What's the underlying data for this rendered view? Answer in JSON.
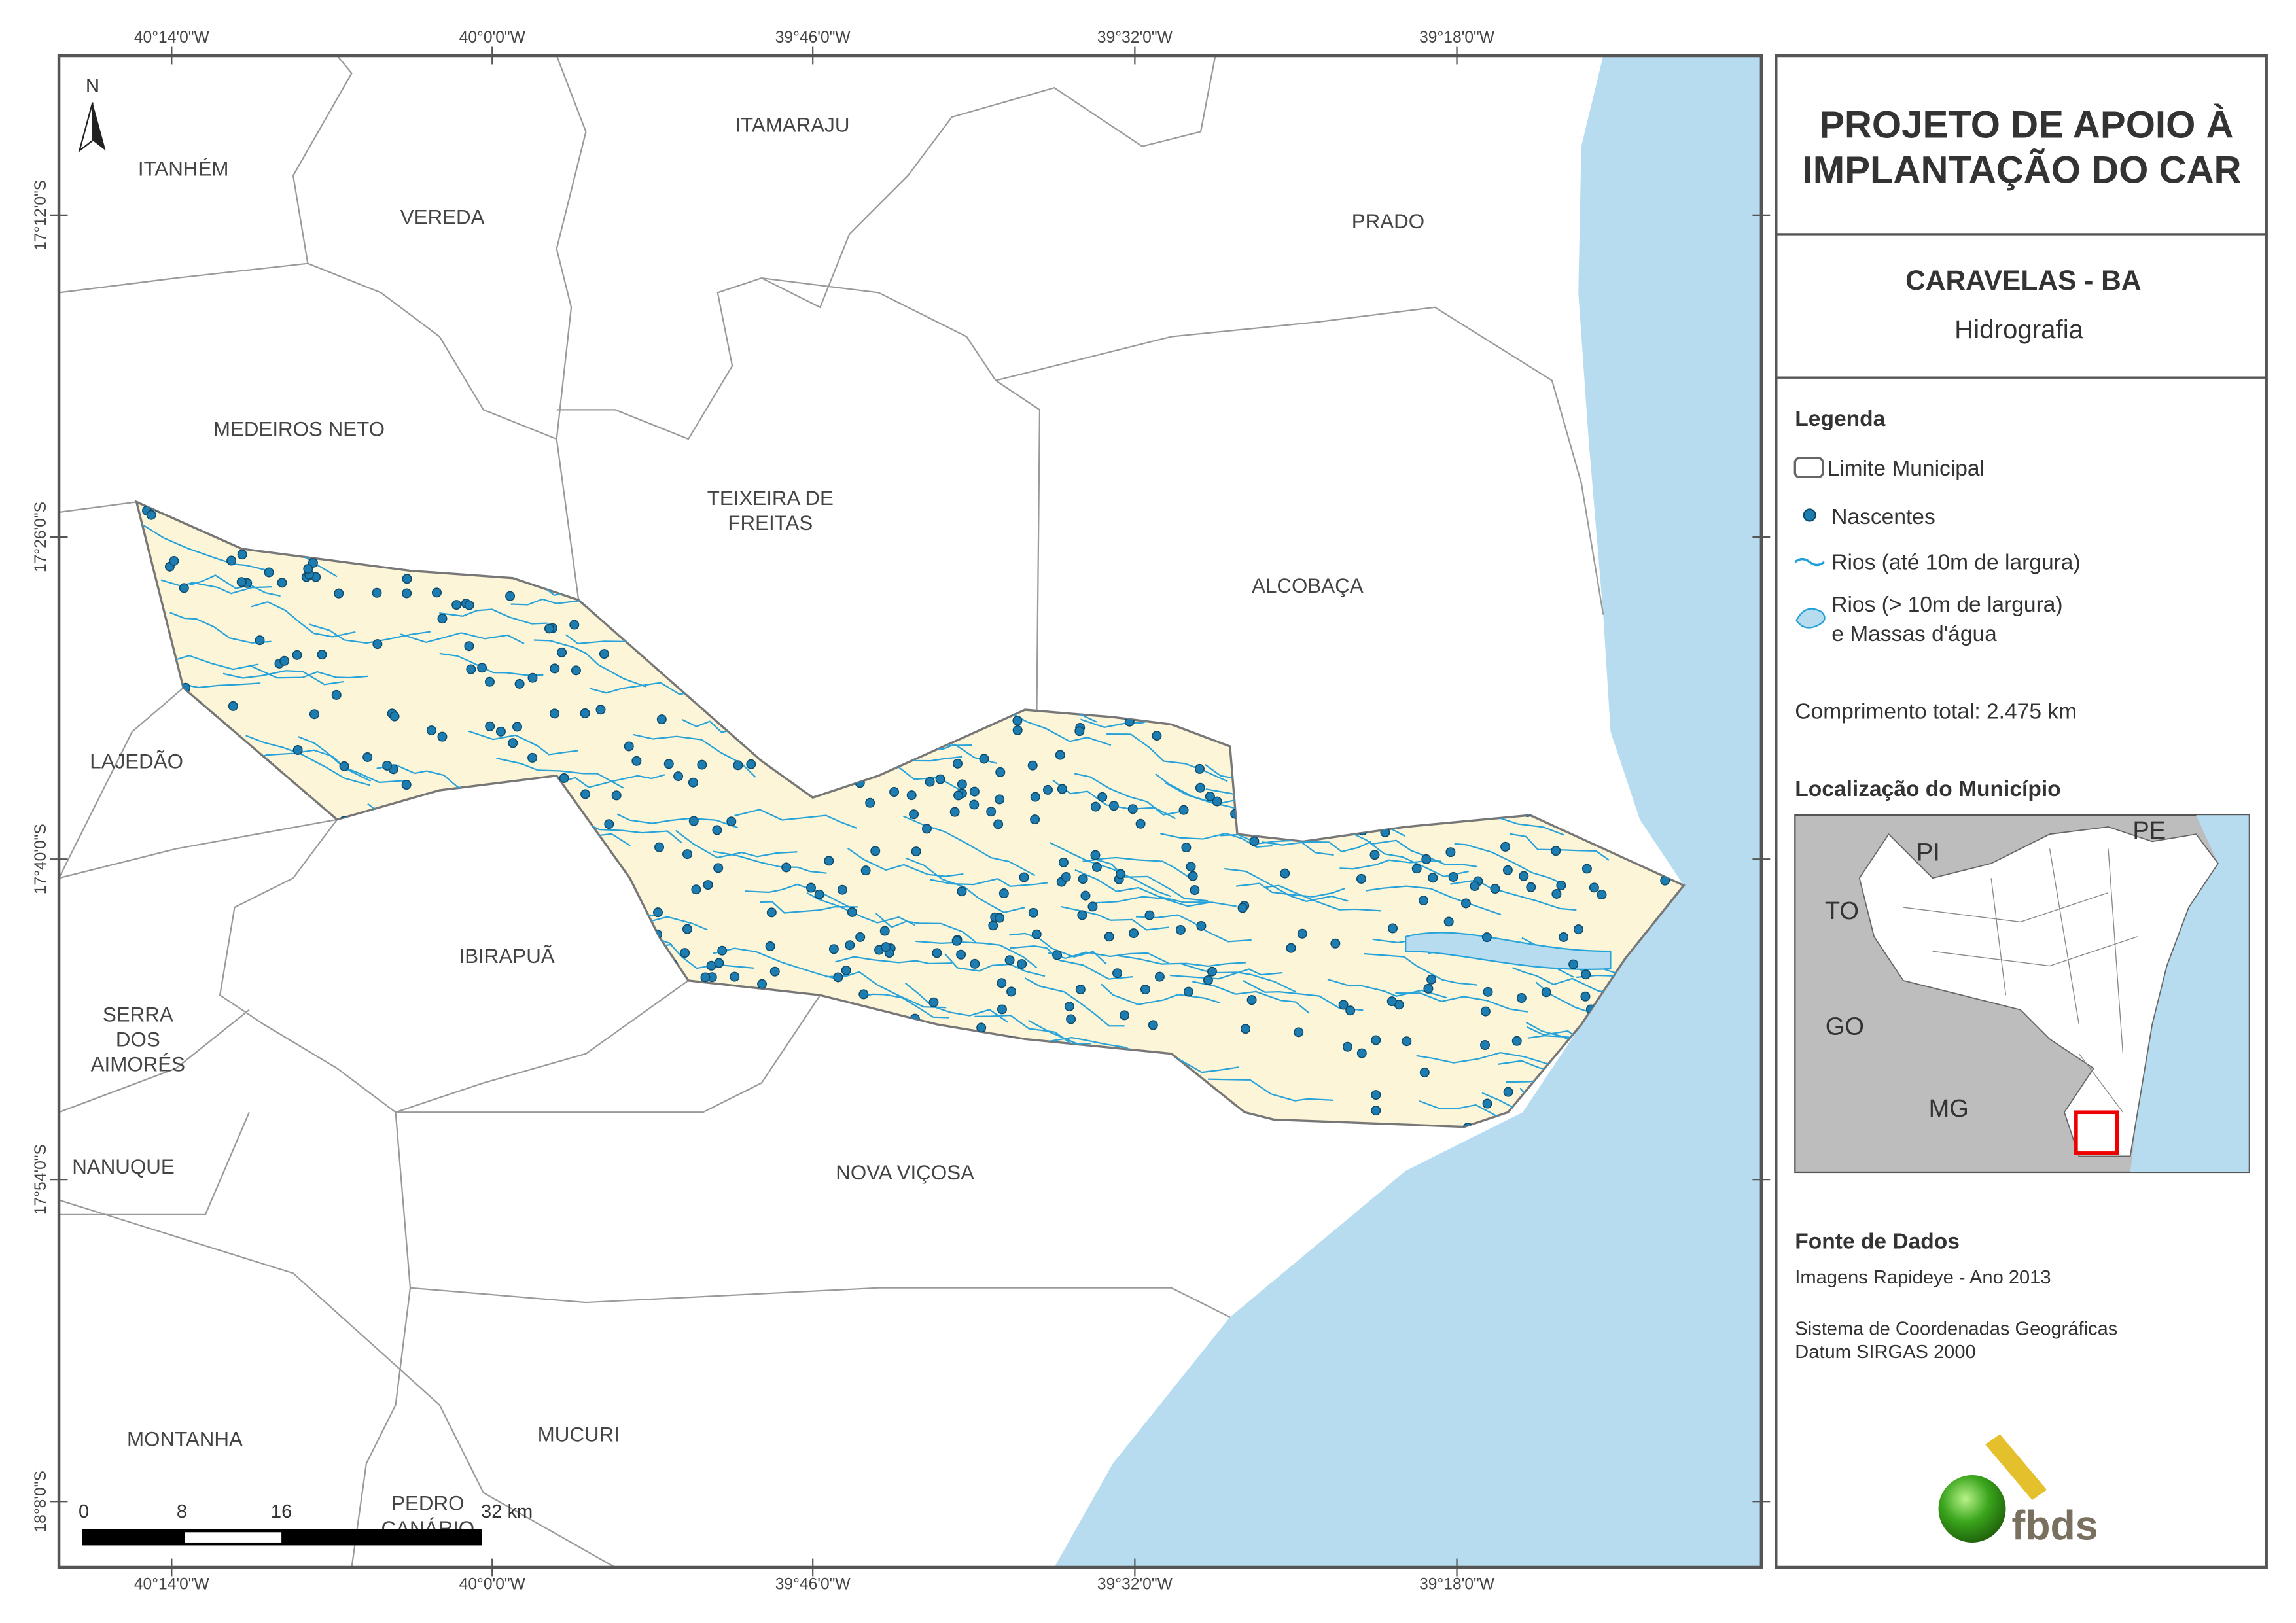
{
  "map": {
    "top_coords": [
      "40°14'0\"W",
      "40°0'0\"W",
      "39°46'0\"W",
      "39°32'0\"W",
      "39°18'0\"W"
    ],
    "left_coords": [
      "17°12'0\"S",
      "17°26'0\"S",
      "17°40'0\"S",
      "17°54'0\"S",
      "18°8'0\"S"
    ],
    "north": "N",
    "places": [
      [
        "ITAMARAJU"
      ],
      [
        "ITANHÉM"
      ],
      [
        "VEREDA"
      ],
      [
        "PRADO"
      ],
      [
        "MEDEIROS NETO"
      ],
      [
        "TEIXEIRA DE",
        "FREITAS"
      ],
      [
        "ALCOBAÇA"
      ],
      [
        "LAJEDÃO"
      ],
      [
        "IBIRAPUÃ"
      ],
      [
        "SERRA",
        "DOS",
        "AIMORÉS"
      ],
      [
        "NANUQUE"
      ],
      [
        "NOVA VIÇOSA"
      ],
      [
        "MONTANHA"
      ],
      [
        "MUCURI"
      ],
      [
        "PEDRO",
        "CANÁRIO"
      ]
    ],
    "scale_bar": [
      "0",
      "8",
      "16",
      "32 km"
    ]
  },
  "panel": {
    "title": [
      "PROJETO DE APOIO À",
      "IMPLANTAÇÃO DO CAR"
    ],
    "municipality": "CARAVELAS - BA",
    "theme": "Hidrografia",
    "legend": {
      "title": "Legenda",
      "items": [
        "Limite Municipal",
        "Nascentes",
        "Rios (até 10m de largura)",
        [
          "Rios (> 10m de largura)",
          "e Massas d'água"
        ]
      ]
    },
    "total_length": "Comprimento total:  2.475 km",
    "location_title": "Localização do Município",
    "inset_labels": [
      "PI",
      "PE",
      "TO",
      "GO",
      "MG"
    ],
    "sources_title": "Fonte de Dados",
    "sources": [
      "Imagens Rapideye - Ano 2013",
      "Sistema de Coordenadas Geográficas",
      "Datum SIRGAS 2000"
    ],
    "logo": "fbds"
  }
}
